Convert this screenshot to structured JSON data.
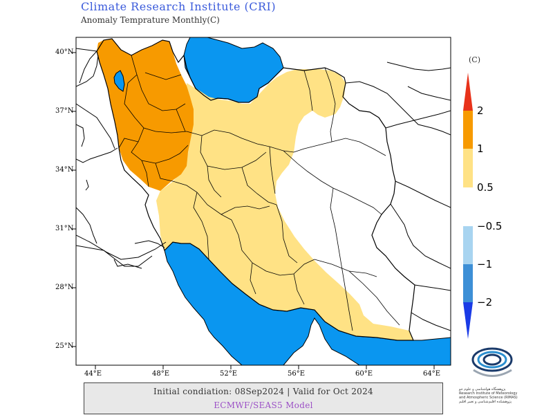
{
  "header": {
    "title": "Climate Research Institute (CRI)",
    "subtitle": "Anomaly Temprature Monthly(C)"
  },
  "map": {
    "region": "Iran",
    "projection": "lat-lon",
    "lat_labels": [
      "40°N",
      "37°N",
      "34°N",
      "31°N",
      "28°N",
      "25°N"
    ],
    "lon_labels": [
      "44°E",
      "48°E",
      "52°E",
      "56°E",
      "60°E",
      "64°E"
    ],
    "colors": {
      "water": "#0a96f0",
      "anomaly_0_5_to_1": "#ffe285",
      "anomaly_1_to_2": "#f79a00",
      "anomaly_above_2": "#e8321a",
      "anomaly_neg_0_5_to_1": "#a8d4f0",
      "anomaly_neg_1_to_2": "#3d8fd6",
      "anomaly_below_neg_2": "#1a3be6"
    }
  },
  "colorbar": {
    "unit": "(C)",
    "warm_labels": [
      "2",
      "1",
      "0.5"
    ],
    "cold_labels": [
      "−0.5",
      "−1",
      "−2"
    ]
  },
  "footer": {
    "line1": "Initial condiation: 08Sep2024 | Valid for Oct 2024",
    "line2": "ECMWF/SEAS5 Model"
  },
  "logo": {
    "text": "پژوهشگاه هواشناسی و علوم جو Research Institute of Meteorology and Atmospheric Science (RIMAS) پژوهشکده اقلیم‌شناسی و تغییر اقلیم"
  }
}
